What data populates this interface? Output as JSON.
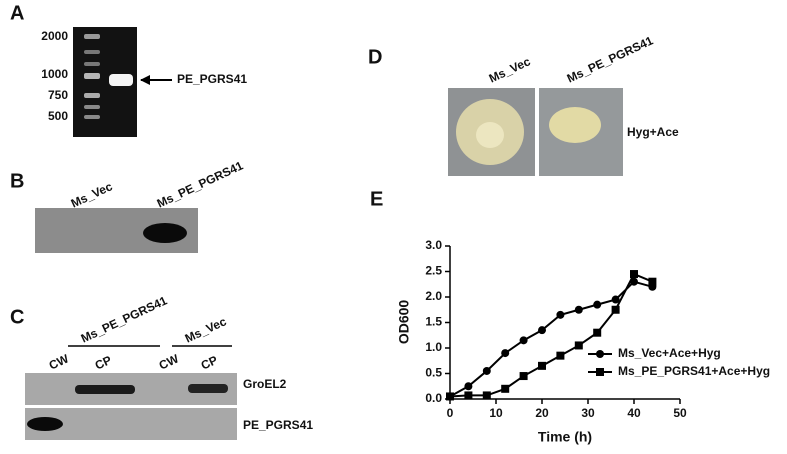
{
  "panel_a": {
    "letter": "A",
    "ladder": [
      "2000",
      "1000",
      "750",
      "500"
    ],
    "band_label": "PE_PGRS41"
  },
  "panel_b": {
    "letter": "B",
    "lanes": [
      "Ms_Vec",
      "Ms_PE_PGRS41"
    ]
  },
  "panel_c": {
    "letter": "C",
    "groups": [
      "Ms_PE_PGRS41",
      "Ms_Vec"
    ],
    "fractions": [
      "CW",
      "CP",
      "CW",
      "CP"
    ],
    "rows": [
      "GroEL2",
      "PE_PGRS41"
    ]
  },
  "panel_d": {
    "letter": "D",
    "strains": [
      "Ms_Vec",
      "Ms_PE_PGRS41"
    ],
    "condition": "Hyg+Ace"
  },
  "chart_data": {
    "type": "line",
    "letter": "E",
    "x_label": "Time (h)",
    "y_label": "OD600",
    "xlim": [
      0,
      50
    ],
    "xticks": [
      0,
      10,
      20,
      30,
      40,
      50
    ],
    "ylim": [
      0,
      3
    ],
    "yticks": [
      {
        "value": 0,
        "label": "0.0"
      },
      0.5,
      {
        "value": 1,
        "label": "1.0"
      },
      1.5,
      {
        "value": 2,
        "label": "2.0"
      },
      2.5,
      {
        "value": 3,
        "label": "3.0"
      }
    ],
    "x": [
      0,
      4,
      8,
      12,
      16,
      20,
      24,
      28,
      32,
      36,
      40,
      44
    ],
    "series": [
      {
        "name": "Ms_Vec+Ace+Hyg",
        "marker": "circle",
        "color": "#000000",
        "values": [
          0.05,
          0.25,
          0.55,
          0.9,
          1.15,
          1.35,
          1.65,
          1.75,
          1.85,
          1.95,
          2.3,
          2.2
        ]
      },
      {
        "name": "Ms_PE_PGRS41+Ace+Hyg",
        "marker": "square",
        "color": "#000000",
        "values": [
          0.05,
          0.07,
          0.07,
          0.2,
          0.45,
          0.65,
          0.85,
          1.05,
          1.3,
          1.75,
          2.45,
          2.3
        ]
      }
    ]
  }
}
